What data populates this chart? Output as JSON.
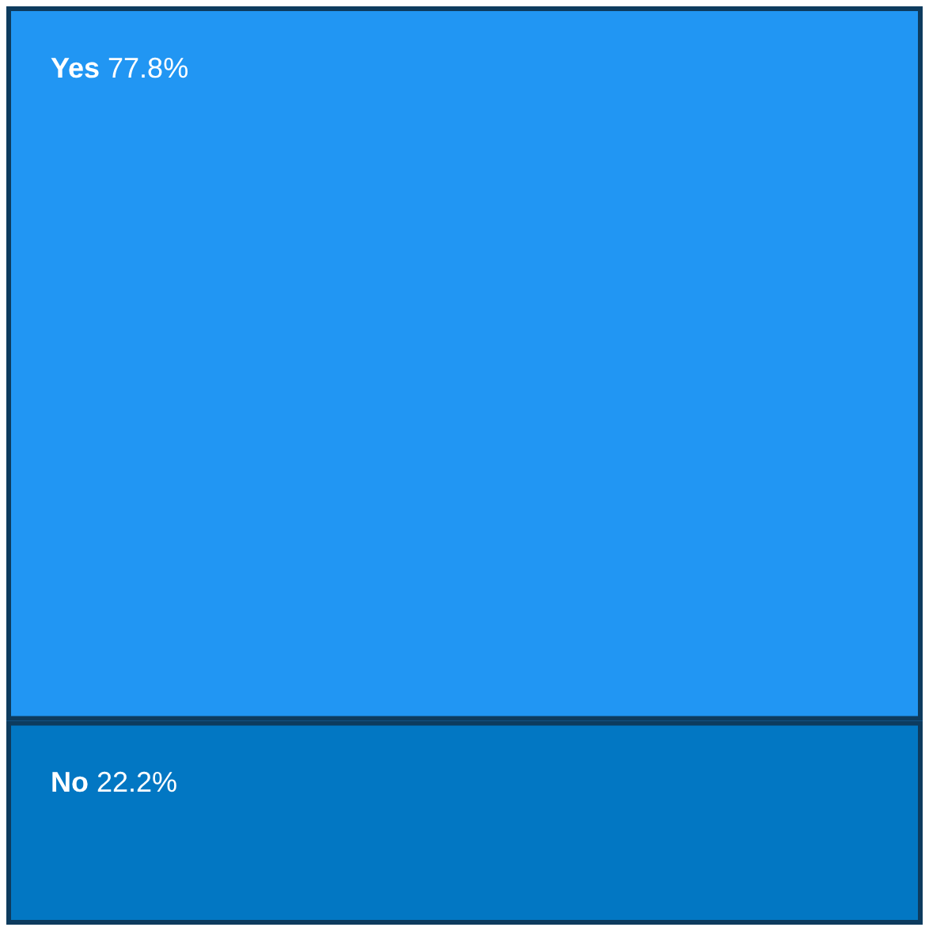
{
  "chart_data": {
    "type": "other",
    "categories": [
      "Yes",
      "No"
    ],
    "values": [
      77.8,
      22.2
    ],
    "value_labels": [
      "77.8%",
      "22.2%"
    ],
    "colors": [
      "#2196f3",
      "#0277c3"
    ]
  }
}
